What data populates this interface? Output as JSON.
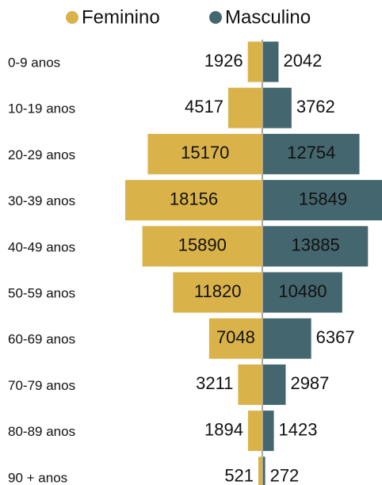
{
  "chart_data": {
    "type": "pyramid",
    "categories": [
      "0-9 anos",
      "10-19 anos",
      "20-29 anos",
      "30-39 anos",
      "40-49 anos",
      "50-59 anos",
      "60-69 anos",
      "70-79 anos",
      "80-89 anos",
      "90 + anos"
    ],
    "series": [
      {
        "name": "Feminino",
        "color": "#d9b24a",
        "values": [
          1926,
          4517,
          15170,
          18156,
          15890,
          11820,
          7048,
          3211,
          1894,
          521
        ]
      },
      {
        "name": "Masculino",
        "color": "#44666e",
        "values": [
          2042,
          3762,
          12754,
          15849,
          13885,
          10480,
          6367,
          2987,
          1423,
          272
        ]
      }
    ]
  }
}
